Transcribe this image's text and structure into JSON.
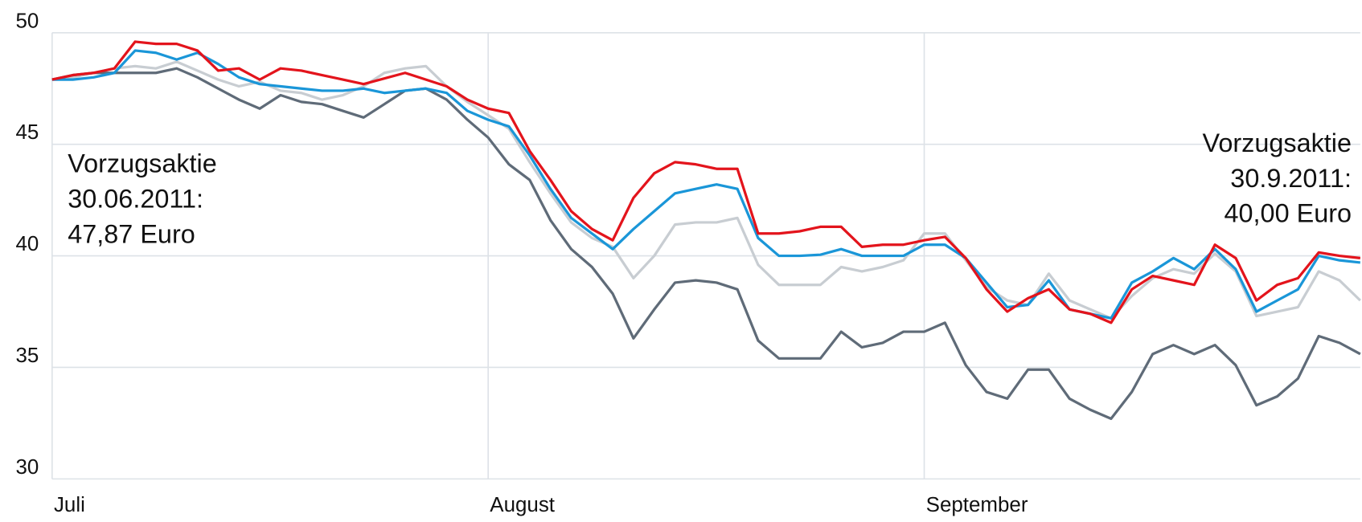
{
  "chart_data": {
    "type": "line",
    "categories": [
      "Juli",
      null,
      null,
      null,
      null,
      null,
      null,
      null,
      null,
      null,
      null,
      null,
      null,
      null,
      null,
      null,
      null,
      null,
      null,
      null,
      null,
      "August",
      null,
      null,
      null,
      null,
      null,
      null,
      null,
      null,
      null,
      null,
      null,
      null,
      null,
      null,
      null,
      null,
      null,
      null,
      null,
      null,
      "September",
      null,
      null,
      null,
      null,
      null,
      null,
      null,
      null,
      null,
      null,
      null,
      null,
      null,
      null,
      null,
      null,
      null,
      null,
      null,
      null,
      null
    ],
    "series": [
      {
        "color": "#c8cdd2",
        "values": [
          47.9,
          48.0,
          48.2,
          48.4,
          48.5,
          48.4,
          48.7,
          48.3,
          47.9,
          47.6,
          47.8,
          47.4,
          47.3,
          47.0,
          47.2,
          47.6,
          48.2,
          48.4,
          48.5,
          47.6,
          46.9,
          46.3,
          45.7,
          44.2,
          42.8,
          41.5,
          40.8,
          40.4,
          39.0,
          40.0,
          41.4,
          41.5,
          41.5,
          41.7,
          39.6,
          38.7,
          38.7,
          38.7,
          39.5,
          39.3,
          39.5,
          39.8,
          41.0,
          41.0,
          39.8,
          38.6,
          38.0,
          37.8,
          39.2,
          38.0,
          37.6,
          37.2,
          38.2,
          39.0,
          39.4,
          39.2,
          40.1,
          39.3,
          37.3,
          37.5,
          37.7,
          39.3,
          38.9,
          38.0
        ]
      },
      {
        "color": "#5f6b78",
        "values": [
          47.9,
          48.1,
          48.2,
          48.2,
          48.2,
          48.2,
          48.4,
          48.0,
          47.5,
          47.0,
          46.6,
          47.2,
          46.9,
          46.8,
          46.5,
          46.2,
          46.8,
          47.4,
          47.5,
          47.0,
          46.1,
          45.3,
          44.1,
          43.4,
          41.6,
          40.3,
          39.5,
          38.3,
          36.3,
          37.6,
          38.8,
          38.9,
          38.8,
          38.5,
          36.2,
          35.4,
          35.4,
          35.4,
          36.6,
          35.9,
          36.1,
          36.6,
          36.6,
          37.0,
          35.1,
          33.9,
          33.6,
          34.9,
          34.9,
          33.6,
          33.1,
          32.7,
          33.9,
          35.6,
          36.0,
          35.6,
          36.0,
          35.1,
          33.3,
          33.7,
          34.5,
          36.4,
          36.1,
          35.6
        ]
      },
      {
        "color": "#1a96d8",
        "values": [
          47.9,
          47.9,
          48.0,
          48.2,
          49.2,
          49.1,
          48.8,
          49.1,
          48.6,
          48.0,
          47.7,
          47.6,
          47.5,
          47.4,
          47.4,
          47.5,
          47.3,
          47.4,
          47.5,
          47.3,
          46.5,
          46.1,
          45.8,
          44.5,
          43.0,
          41.7,
          41.0,
          40.3,
          41.2,
          42.0,
          42.8,
          43.0,
          43.2,
          43.0,
          40.8,
          40.0,
          40.0,
          40.05,
          40.3,
          40.0,
          40.0,
          40.0,
          40.5,
          40.5,
          39.9,
          38.8,
          37.7,
          37.8,
          38.9,
          37.6,
          37.4,
          37.2,
          38.8,
          39.3,
          39.9,
          39.4,
          40.3,
          39.4,
          37.5,
          38.0,
          38.5,
          40.0,
          39.8,
          39.7
        ]
      },
      {
        "color": "#e3141c",
        "values": [
          47.9,
          48.1,
          48.2,
          48.4,
          49.6,
          49.5,
          49.5,
          49.2,
          48.3,
          48.4,
          47.9,
          48.4,
          48.3,
          48.1,
          47.9,
          47.7,
          47.95,
          48.2,
          47.9,
          47.6,
          47.0,
          46.6,
          46.4,
          44.7,
          43.4,
          42.0,
          41.2,
          40.7,
          42.6,
          43.7,
          44.2,
          44.1,
          43.9,
          43.9,
          41.0,
          41.0,
          41.1,
          41.3,
          41.3,
          40.4,
          40.5,
          40.5,
          40.7,
          40.85,
          39.9,
          38.5,
          37.5,
          38.1,
          38.5,
          37.6,
          37.4,
          37.0,
          38.5,
          39.1,
          38.9,
          38.7,
          40.5,
          39.9,
          38.0,
          38.7,
          39.0,
          40.15,
          40.0,
          39.9
        ]
      }
    ],
    "ylim": [
      30,
      50
    ],
    "yticks": [
      30,
      35,
      40,
      45,
      50
    ],
    "grid": true,
    "annotations": [
      {
        "lines": [
          "Vorzugsaktie",
          "30.06.2011:",
          "47,87 Euro"
        ],
        "position": "left"
      },
      {
        "lines": [
          "Vorzugsaktie",
          "30.9.2011:",
          "40,00 Euro"
        ],
        "position": "right"
      }
    ]
  }
}
